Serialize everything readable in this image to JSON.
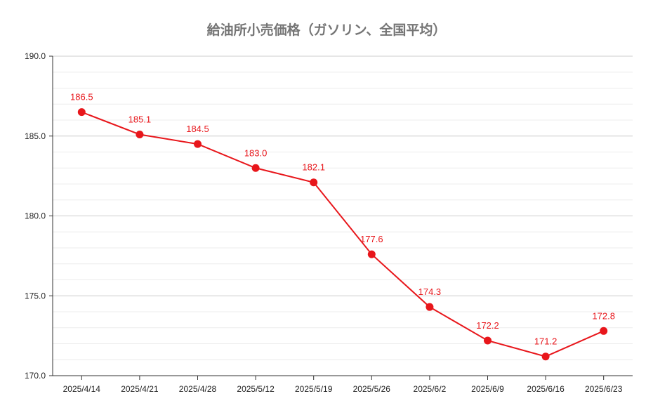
{
  "chart_data": {
    "type": "line",
    "title": "給油所小売価格（ガソリン、全国平均）",
    "xlabel": "",
    "ylabel": "",
    "categories": [
      "2025/4/14",
      "2025/4/21",
      "2025/4/28",
      "2025/5/12",
      "2025/5/19",
      "2025/5/26",
      "2025/6/2",
      "2025/6/9",
      "2025/6/16",
      "2025/6/23"
    ],
    "series": [
      {
        "values": [
          186.5,
          185.1,
          184.5,
          183.0,
          182.1,
          177.6,
          174.3,
          172.2,
          171.2,
          172.8
        ],
        "labels": [
          "186.5",
          "185.1",
          "184.5",
          "183.0",
          "182.1",
          "177.6",
          "174.3",
          "172.2",
          "171.2",
          "172.8"
        ],
        "color": "#e8161b"
      }
    ],
    "ylim": [
      170,
      190
    ],
    "yticks": [
      "170.0",
      "175.0",
      "180.0",
      "185.0",
      "190.0"
    ],
    "grid": true
  }
}
